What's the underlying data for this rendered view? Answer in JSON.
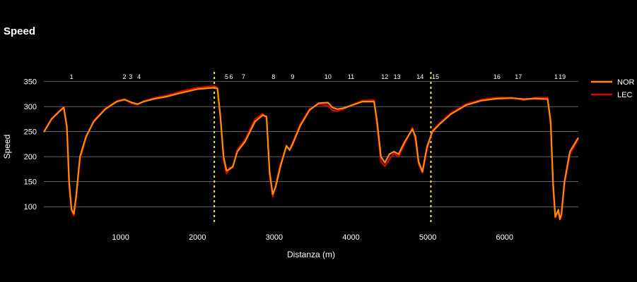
{
  "chart_data": {
    "type": "line",
    "title": "Speed",
    "xlabel": "Distanza (m)",
    "ylabel": "Speed",
    "xlim": [
      0,
      6960
    ],
    "ylim": [
      65,
      375
    ],
    "xticks": [
      1000,
      2000,
      3000,
      4000,
      5000,
      6000
    ],
    "yticks": [
      100,
      150,
      200,
      250,
      300,
      350
    ],
    "grid": "horizontal",
    "legend_position": "top-right",
    "sector_markers": [
      2220,
      5040
    ],
    "corners": [
      {
        "label": "1",
        "x": 360
      },
      {
        "label": "2",
        "x": 1050
      },
      {
        "label": "3",
        "x": 1130
      },
      {
        "label": "4",
        "x": 1240
      },
      {
        "label": "5",
        "x": 2380
      },
      {
        "label": "6",
        "x": 2440
      },
      {
        "label": "7",
        "x": 2600
      },
      {
        "label": "8",
        "x": 2990
      },
      {
        "label": "9",
        "x": 3240
      },
      {
        "label": "10",
        "x": 3700
      },
      {
        "label": "11",
        "x": 4000
      },
      {
        "label": "12",
        "x": 4440
      },
      {
        "label": "13",
        "x": 4600
      },
      {
        "label": "14",
        "x": 4900
      },
      {
        "label": "15",
        "x": 5100
      },
      {
        "label": "16",
        "x": 5900
      },
      {
        "label": "17",
        "x": 6180
      },
      {
        "label": "1",
        "x": 6670
      },
      {
        "label": "19",
        "x": 6750
      }
    ],
    "series": [
      {
        "name": "NOR",
        "color": "#FF8C00",
        "x": [
          0,
          100,
          200,
          260,
          300,
          330,
          360,
          390,
          420,
          470,
          550,
          650,
          800,
          950,
          1050,
          1150,
          1220,
          1300,
          1450,
          1600,
          1800,
          2000,
          2150,
          2220,
          2260,
          2300,
          2340,
          2380,
          2420,
          2460,
          2520,
          2620,
          2750,
          2850,
          2900,
          2940,
          2980,
          3020,
          3080,
          3160,
          3200,
          3240,
          3340,
          3460,
          3580,
          3700,
          3760,
          3820,
          3900,
          4000,
          4150,
          4300,
          4340,
          4390,
          4440,
          4500,
          4560,
          4620,
          4700,
          4800,
          4840,
          4880,
          4930,
          4990,
          5060,
          5160,
          5300,
          5500,
          5700,
          5900,
          6100,
          6250,
          6400,
          6560,
          6600,
          6630,
          6660,
          6700,
          6720,
          6740,
          6780,
          6850,
          6960
        ],
        "values": [
          249,
          275,
          290,
          298,
          260,
          150,
          95,
          86,
          120,
          200,
          240,
          270,
          295,
          310,
          314,
          308,
          305,
          310,
          316,
          320,
          328,
          335,
          337,
          338,
          336,
          280,
          200,
          172,
          175,
          180,
          210,
          230,
          270,
          283,
          280,
          170,
          125,
          140,
          180,
          222,
          213,
          225,
          262,
          293,
          307,
          308,
          298,
          295,
          297,
          302,
          310,
          310,
          270,
          200,
          188,
          205,
          210,
          205,
          230,
          255,
          240,
          190,
          170,
          220,
          250,
          266,
          285,
          303,
          312,
          316,
          317,
          315,
          316,
          315,
          270,
          150,
          80,
          94,
          75,
          85,
          150,
          210,
          238
        ]
      },
      {
        "name": "LEC",
        "color": "#DC0000",
        "x": [
          0,
          100,
          200,
          260,
          300,
          330,
          360,
          390,
          420,
          470,
          550,
          650,
          800,
          950,
          1050,
          1150,
          1220,
          1300,
          1450,
          1600,
          1800,
          2000,
          2150,
          2220,
          2260,
          2300,
          2340,
          2380,
          2420,
          2460,
          2520,
          2620,
          2750,
          2850,
          2900,
          2940,
          2980,
          3020,
          3080,
          3160,
          3200,
          3240,
          3340,
          3460,
          3580,
          3700,
          3760,
          3820,
          3900,
          4000,
          4150,
          4300,
          4340,
          4390,
          4440,
          4500,
          4560,
          4620,
          4700,
          4800,
          4840,
          4880,
          4930,
          4990,
          5060,
          5160,
          5300,
          5500,
          5700,
          5900,
          6100,
          6250,
          6400,
          6560,
          6600,
          6630,
          6660,
          6700,
          6720,
          6740,
          6780,
          6850,
          6960
        ],
        "values": [
          250,
          276,
          291,
          299,
          255,
          140,
          92,
          82,
          115,
          195,
          238,
          272,
          296,
          311,
          315,
          306,
          304,
          311,
          318,
          322,
          331,
          338,
          340,
          341,
          338,
          275,
          195,
          166,
          178,
          178,
          214,
          234,
          275,
          286,
          277,
          165,
          120,
          145,
          185,
          220,
          215,
          228,
          265,
          295,
          305,
          302,
          292,
          291,
          295,
          303,
          312,
          313,
          262,
          190,
          181,
          195,
          206,
          200,
          226,
          258,
          232,
          185,
          168,
          215,
          252,
          268,
          287,
          305,
          314,
          318,
          318,
          313,
          318,
          318,
          262,
          140,
          78,
          90,
          74,
          82,
          145,
          205,
          236
        ]
      }
    ]
  }
}
